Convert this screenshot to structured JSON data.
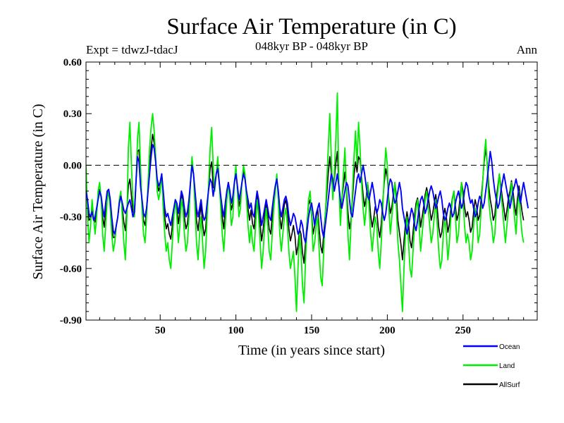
{
  "chart_data": {
    "type": "line",
    "title": "Surface Air Temperature (in C)",
    "subtitle_left": "Expt = tdwzJ-tdacJ",
    "subtitle_center": "048kyr BP - 048kyr BP",
    "subtitle_right": "Ann",
    "xlabel": "Time (in years since start)",
    "ylabel": "Surface Air Temperature (in C)",
    "xlim": [
      1,
      299
    ],
    "ylim": [
      -0.9,
      0.6
    ],
    "x_ticks": [
      50,
      100,
      150,
      200,
      250
    ],
    "x_tick_labels": [
      "50",
      "100",
      "150",
      "200",
      "250"
    ],
    "y_ticks": [
      -0.9,
      -0.6,
      -0.3,
      0.0,
      0.3,
      0.6
    ],
    "y_tick_labels": [
      "-0.90",
      "-0.60",
      "-0.30",
      "0.00",
      "0.30",
      "0.60"
    ],
    "zero_line": true,
    "grid": false,
    "legend_position": "bottom-right",
    "x_start": 1,
    "x_step": 1,
    "series": [
      {
        "name": "Ocean",
        "color": "#0000ff",
        "values": [
          -0.15,
          -0.2,
          -0.28,
          -0.3,
          -0.27,
          -0.32,
          -0.3,
          -0.25,
          -0.2,
          -0.15,
          -0.18,
          -0.25,
          -0.3,
          -0.22,
          -0.15,
          -0.14,
          -0.2,
          -0.3,
          -0.38,
          -0.4,
          -0.35,
          -0.3,
          -0.22,
          -0.18,
          -0.22,
          -0.26,
          -0.28,
          -0.25,
          -0.22,
          -0.2,
          -0.25,
          -0.3,
          -0.27,
          -0.1,
          0.05,
          0.02,
          -0.12,
          -0.2,
          -0.28,
          -0.3,
          -0.25,
          -0.15,
          -0.05,
          0.05,
          0.12,
          0.1,
          0.02,
          -0.08,
          -0.12,
          -0.1,
          -0.05,
          -0.15,
          -0.25,
          -0.3,
          -0.28,
          -0.32,
          -0.35,
          -0.3,
          -0.25,
          -0.2,
          -0.22,
          -0.28,
          -0.22,
          -0.15,
          -0.18,
          -0.25,
          -0.3,
          -0.27,
          -0.2,
          -0.1,
          0.0,
          -0.05,
          -0.15,
          -0.25,
          -0.3,
          -0.25,
          -0.2,
          -0.28,
          -0.32,
          -0.3,
          -0.22,
          -0.14,
          -0.08,
          -0.1,
          -0.18,
          -0.12,
          -0.05,
          -0.02,
          -0.1,
          -0.18,
          -0.25,
          -0.3,
          -0.22,
          -0.15,
          -0.1,
          -0.15,
          -0.22,
          -0.18,
          -0.1,
          -0.05,
          -0.12,
          -0.2,
          -0.16,
          -0.1,
          -0.05,
          -0.08,
          -0.15,
          -0.2,
          -0.25,
          -0.22,
          -0.28,
          -0.3,
          -0.22,
          -0.15,
          -0.2,
          -0.28,
          -0.35,
          -0.3,
          -0.25,
          -0.2,
          -0.25,
          -0.3,
          -0.32,
          -0.25,
          -0.18,
          -0.12,
          -0.08,
          -0.15,
          -0.25,
          -0.3,
          -0.25,
          -0.2,
          -0.18,
          -0.22,
          -0.3,
          -0.35,
          -0.32,
          -0.28,
          -0.3,
          -0.35,
          -0.4,
          -0.38,
          -0.32,
          -0.35,
          -0.42,
          -0.45,
          -0.38,
          -0.3,
          -0.25,
          -0.22,
          -0.28,
          -0.35,
          -0.3,
          -0.25,
          -0.22,
          -0.3,
          -0.38,
          -0.42,
          -0.35,
          -0.28,
          -0.2,
          -0.12,
          -0.05,
          -0.08,
          -0.15,
          -0.1,
          -0.05,
          -0.12,
          -0.2,
          -0.25,
          -0.2,
          -0.15,
          -0.1,
          -0.12,
          -0.2,
          -0.28,
          -0.3,
          -0.22,
          -0.15,
          -0.08,
          -0.05,
          -0.1,
          -0.05,
          0.0,
          -0.05,
          -0.12,
          -0.18,
          -0.2,
          -0.15,
          -0.1,
          -0.15,
          -0.22,
          -0.28,
          -0.25,
          -0.2,
          -0.22,
          -0.28,
          -0.32,
          -0.28,
          -0.2,
          -0.12,
          -0.08,
          -0.1,
          -0.18,
          -0.22,
          -0.2,
          -0.15,
          -0.1,
          -0.15,
          -0.25,
          -0.3,
          -0.35,
          -0.4,
          -0.35,
          -0.3,
          -0.25,
          -0.28,
          -0.35,
          -0.38,
          -0.32,
          -0.25,
          -0.2,
          -0.18,
          -0.22,
          -0.28,
          -0.25,
          -0.2,
          -0.15,
          -0.12,
          -0.15,
          -0.2,
          -0.25,
          -0.22,
          -0.18,
          -0.15,
          -0.2,
          -0.28,
          -0.32,
          -0.3,
          -0.25,
          -0.22,
          -0.25,
          -0.3,
          -0.28,
          -0.22,
          -0.18,
          -0.15,
          -0.2,
          -0.25,
          -0.22,
          -0.15,
          -0.1,
          -0.12,
          -0.18,
          -0.22,
          -0.2,
          -0.25,
          -0.3,
          -0.28,
          -0.22,
          -0.18,
          -0.2,
          -0.25,
          -0.22,
          -0.15,
          -0.08,
          0.0,
          0.08,
          0.02,
          -0.08,
          -0.15,
          -0.2,
          -0.25,
          -0.22,
          -0.15,
          -0.1,
          -0.05,
          -0.1,
          -0.15,
          -0.2,
          -0.25,
          -0.2,
          -0.15,
          -0.12,
          -0.08,
          -0.12,
          -0.18,
          -0.22,
          -0.15,
          -0.1,
          -0.15,
          -0.2,
          -0.25
        ]
      },
      {
        "name": "Land",
        "color": "#00ee00",
        "values": [
          0.0,
          -0.3,
          -0.45,
          -0.35,
          -0.2,
          -0.3,
          -0.4,
          -0.3,
          -0.15,
          -0.1,
          -0.2,
          -0.4,
          -0.5,
          -0.35,
          -0.2,
          -0.15,
          -0.25,
          -0.4,
          -0.5,
          -0.45,
          -0.35,
          -0.3,
          -0.2,
          -0.15,
          -0.3,
          -0.45,
          -0.55,
          -0.3,
          0.1,
          0.25,
          0.0,
          -0.2,
          -0.3,
          -0.1,
          0.15,
          0.25,
          0.0,
          -0.25,
          -0.4,
          -0.45,
          -0.3,
          -0.1,
          0.1,
          0.22,
          0.3,
          0.2,
          0.05,
          -0.15,
          -0.2,
          -0.15,
          -0.05,
          -0.25,
          -0.4,
          -0.5,
          -0.45,
          -0.55,
          -0.6,
          -0.45,
          -0.3,
          -0.2,
          -0.3,
          -0.45,
          -0.35,
          -0.2,
          -0.25,
          -0.4,
          -0.5,
          -0.45,
          -0.3,
          -0.1,
          0.05,
          -0.05,
          -0.25,
          -0.45,
          -0.55,
          -0.4,
          -0.3,
          -0.45,
          -0.6,
          -0.5,
          -0.3,
          -0.1,
          0.1,
          0.22,
          0.0,
          -0.15,
          -0.05,
          0.05,
          -0.1,
          -0.25,
          -0.4,
          -0.5,
          -0.35,
          -0.2,
          -0.1,
          -0.2,
          -0.35,
          -0.3,
          -0.1,
          0.0,
          -0.15,
          -0.3,
          -0.25,
          -0.1,
          0.0,
          -0.05,
          -0.2,
          -0.35,
          -0.45,
          -0.35,
          -0.45,
          -0.5,
          -0.35,
          -0.2,
          -0.3,
          -0.45,
          -0.6,
          -0.5,
          -0.35,
          -0.25,
          -0.35,
          -0.5,
          -0.55,
          -0.4,
          -0.25,
          -0.15,
          -0.05,
          -0.2,
          -0.4,
          -0.5,
          -0.4,
          -0.3,
          -0.25,
          -0.35,
          -0.5,
          -0.6,
          -0.55,
          -0.5,
          -0.65,
          -0.85,
          -0.6,
          -0.4,
          -0.5,
          -0.7,
          -0.8,
          -0.55,
          -0.35,
          -0.2,
          -0.15,
          -0.3,
          -0.5,
          -0.45,
          -0.35,
          -0.3,
          -0.5,
          -0.65,
          -0.7,
          -0.5,
          -0.3,
          -0.1,
          0.1,
          0.3,
          0.05,
          -0.2,
          -0.05,
          0.15,
          0.42,
          -0.1,
          -0.35,
          -0.2,
          -0.05,
          0.1,
          -0.15,
          -0.4,
          -0.55,
          -0.35,
          -0.15,
          0.05,
          0.2,
          0.0,
          0.25,
          0.1,
          -0.1,
          -0.25,
          -0.35,
          -0.25,
          -0.1,
          -0.25,
          -0.4,
          -0.5,
          -0.4,
          -0.3,
          -0.35,
          -0.5,
          -0.6,
          -0.45,
          -0.25,
          -0.05,
          0.1,
          0.0,
          -0.25,
          -0.4,
          -0.3,
          -0.2,
          -0.1,
          -0.25,
          -0.45,
          -0.55,
          -0.7,
          -0.85,
          -0.6,
          -0.4,
          -0.3,
          -0.45,
          -0.6,
          -0.65,
          -0.5,
          -0.35,
          -0.25,
          -0.2,
          -0.35,
          -0.5,
          -0.4,
          -0.3,
          -0.2,
          -0.15,
          -0.25,
          -0.35,
          -0.45,
          -0.4,
          -0.3,
          -0.2,
          -0.35,
          -0.5,
          -0.6,
          -0.55,
          -0.4,
          -0.3,
          -0.4,
          -0.55,
          -0.45,
          -0.3,
          -0.2,
          -0.15,
          -0.3,
          -0.45,
          -0.4,
          -0.25,
          -0.1,
          -0.2,
          -0.35,
          -0.45,
          -0.4,
          -0.45,
          -0.55,
          -0.5,
          -0.35,
          -0.25,
          -0.3,
          -0.45,
          -0.4,
          -0.25,
          -0.1,
          0.05,
          0.15,
          0.0,
          -0.2,
          -0.3,
          -0.35,
          -0.45,
          -0.4,
          -0.25,
          -0.15,
          -0.05,
          -0.15,
          -0.25,
          -0.35,
          -0.45,
          -0.35,
          -0.25,
          -0.2,
          -0.1,
          -0.2,
          -0.3,
          -0.4,
          -0.25,
          -0.15,
          -0.3,
          -0.4,
          -0.45
        ]
      },
      {
        "name": "AllSurf",
        "color": "#000000",
        "values": [
          -0.1,
          -0.22,
          -0.32,
          -0.31,
          -0.25,
          -0.31,
          -0.33,
          -0.27,
          -0.19,
          -0.14,
          -0.19,
          -0.3,
          -0.36,
          -0.26,
          -0.17,
          -0.15,
          -0.22,
          -0.33,
          -0.42,
          -0.42,
          -0.35,
          -0.3,
          -0.22,
          -0.17,
          -0.25,
          -0.33,
          -0.38,
          -0.26,
          -0.12,
          -0.08,
          -0.18,
          -0.27,
          -0.28,
          -0.1,
          0.08,
          0.09,
          -0.08,
          -0.22,
          -0.32,
          -0.35,
          -0.27,
          -0.13,
          0.0,
          0.1,
          0.18,
          0.13,
          0.03,
          -0.1,
          -0.15,
          -0.12,
          -0.05,
          -0.18,
          -0.3,
          -0.37,
          -0.34,
          -0.4,
          -0.43,
          -0.35,
          -0.27,
          -0.2,
          -0.25,
          -0.34,
          -0.27,
          -0.17,
          -0.2,
          -0.3,
          -0.37,
          -0.34,
          -0.24,
          -0.1,
          0.02,
          -0.05,
          -0.18,
          -0.32,
          -0.38,
          -0.3,
          -0.23,
          -0.34,
          -0.41,
          -0.37,
          -0.25,
          -0.13,
          -0.02,
          0.02,
          -0.13,
          -0.13,
          -0.05,
          0.0,
          -0.1,
          -0.2,
          -0.3,
          -0.37,
          -0.26,
          -0.17,
          -0.1,
          -0.17,
          -0.26,
          -0.22,
          -0.1,
          -0.03,
          -0.13,
          -0.24,
          -0.19,
          -0.1,
          -0.03,
          -0.07,
          -0.17,
          -0.25,
          -0.32,
          -0.26,
          -0.34,
          -0.37,
          -0.26,
          -0.17,
          -0.23,
          -0.34,
          -0.44,
          -0.37,
          -0.29,
          -0.22,
          -0.28,
          -0.37,
          -0.4,
          -0.3,
          -0.2,
          -0.13,
          -0.07,
          -0.17,
          -0.3,
          -0.37,
          -0.3,
          -0.23,
          -0.2,
          -0.26,
          -0.37,
          -0.44,
          -0.4,
          -0.35,
          -0.41,
          -0.52,
          -0.47,
          -0.37,
          -0.4,
          -0.51,
          -0.57,
          -0.45,
          -0.33,
          -0.23,
          -0.2,
          -0.28,
          -0.4,
          -0.35,
          -0.28,
          -0.25,
          -0.37,
          -0.47,
          -0.51,
          -0.4,
          -0.29,
          -0.17,
          -0.05,
          0.05,
          -0.04,
          -0.17,
          -0.08,
          0.01,
          0.08,
          -0.11,
          -0.25,
          -0.2,
          -0.12,
          -0.04,
          -0.13,
          -0.27,
          -0.37,
          -0.32,
          -0.2,
          -0.06,
          0.02,
          -0.04,
          0.05,
          0.03,
          -0.07,
          -0.17,
          -0.24,
          -0.19,
          -0.1,
          -0.18,
          -0.29,
          -0.36,
          -0.31,
          -0.24,
          -0.26,
          -0.36,
          -0.42,
          -0.34,
          -0.21,
          -0.1,
          -0.02,
          -0.07,
          -0.2,
          -0.28,
          -0.24,
          -0.17,
          -0.1,
          -0.18,
          -0.32,
          -0.39,
          -0.46,
          -0.55,
          -0.44,
          -0.34,
          -0.27,
          -0.33,
          -0.44,
          -0.48,
          -0.39,
          -0.29,
          -0.22,
          -0.19,
          -0.26,
          -0.36,
          -0.3,
          -0.24,
          -0.17,
          -0.13,
          -0.18,
          -0.25,
          -0.32,
          -0.28,
          -0.22,
          -0.17,
          -0.25,
          -0.36,
          -0.42,
          -0.39,
          -0.3,
          -0.25,
          -0.3,
          -0.39,
          -0.34,
          -0.25,
          -0.19,
          -0.15,
          -0.24,
          -0.32,
          -0.28,
          -0.19,
          -0.1,
          -0.15,
          -0.24,
          -0.3,
          -0.27,
          -0.32,
          -0.39,
          -0.36,
          -0.27,
          -0.2,
          -0.24,
          -0.32,
          -0.29,
          -0.19,
          -0.09,
          0.02,
          0.1,
          0.01,
          -0.12,
          -0.2,
          -0.25,
          -0.32,
          -0.29,
          -0.19,
          -0.12,
          -0.05,
          -0.12,
          -0.19,
          -0.25,
          -0.32,
          -0.26,
          -0.19,
          -0.15,
          -0.09,
          -0.15,
          -0.23,
          -0.29,
          -0.19,
          -0.12,
          -0.2,
          -0.27,
          -0.32
        ]
      }
    ]
  }
}
